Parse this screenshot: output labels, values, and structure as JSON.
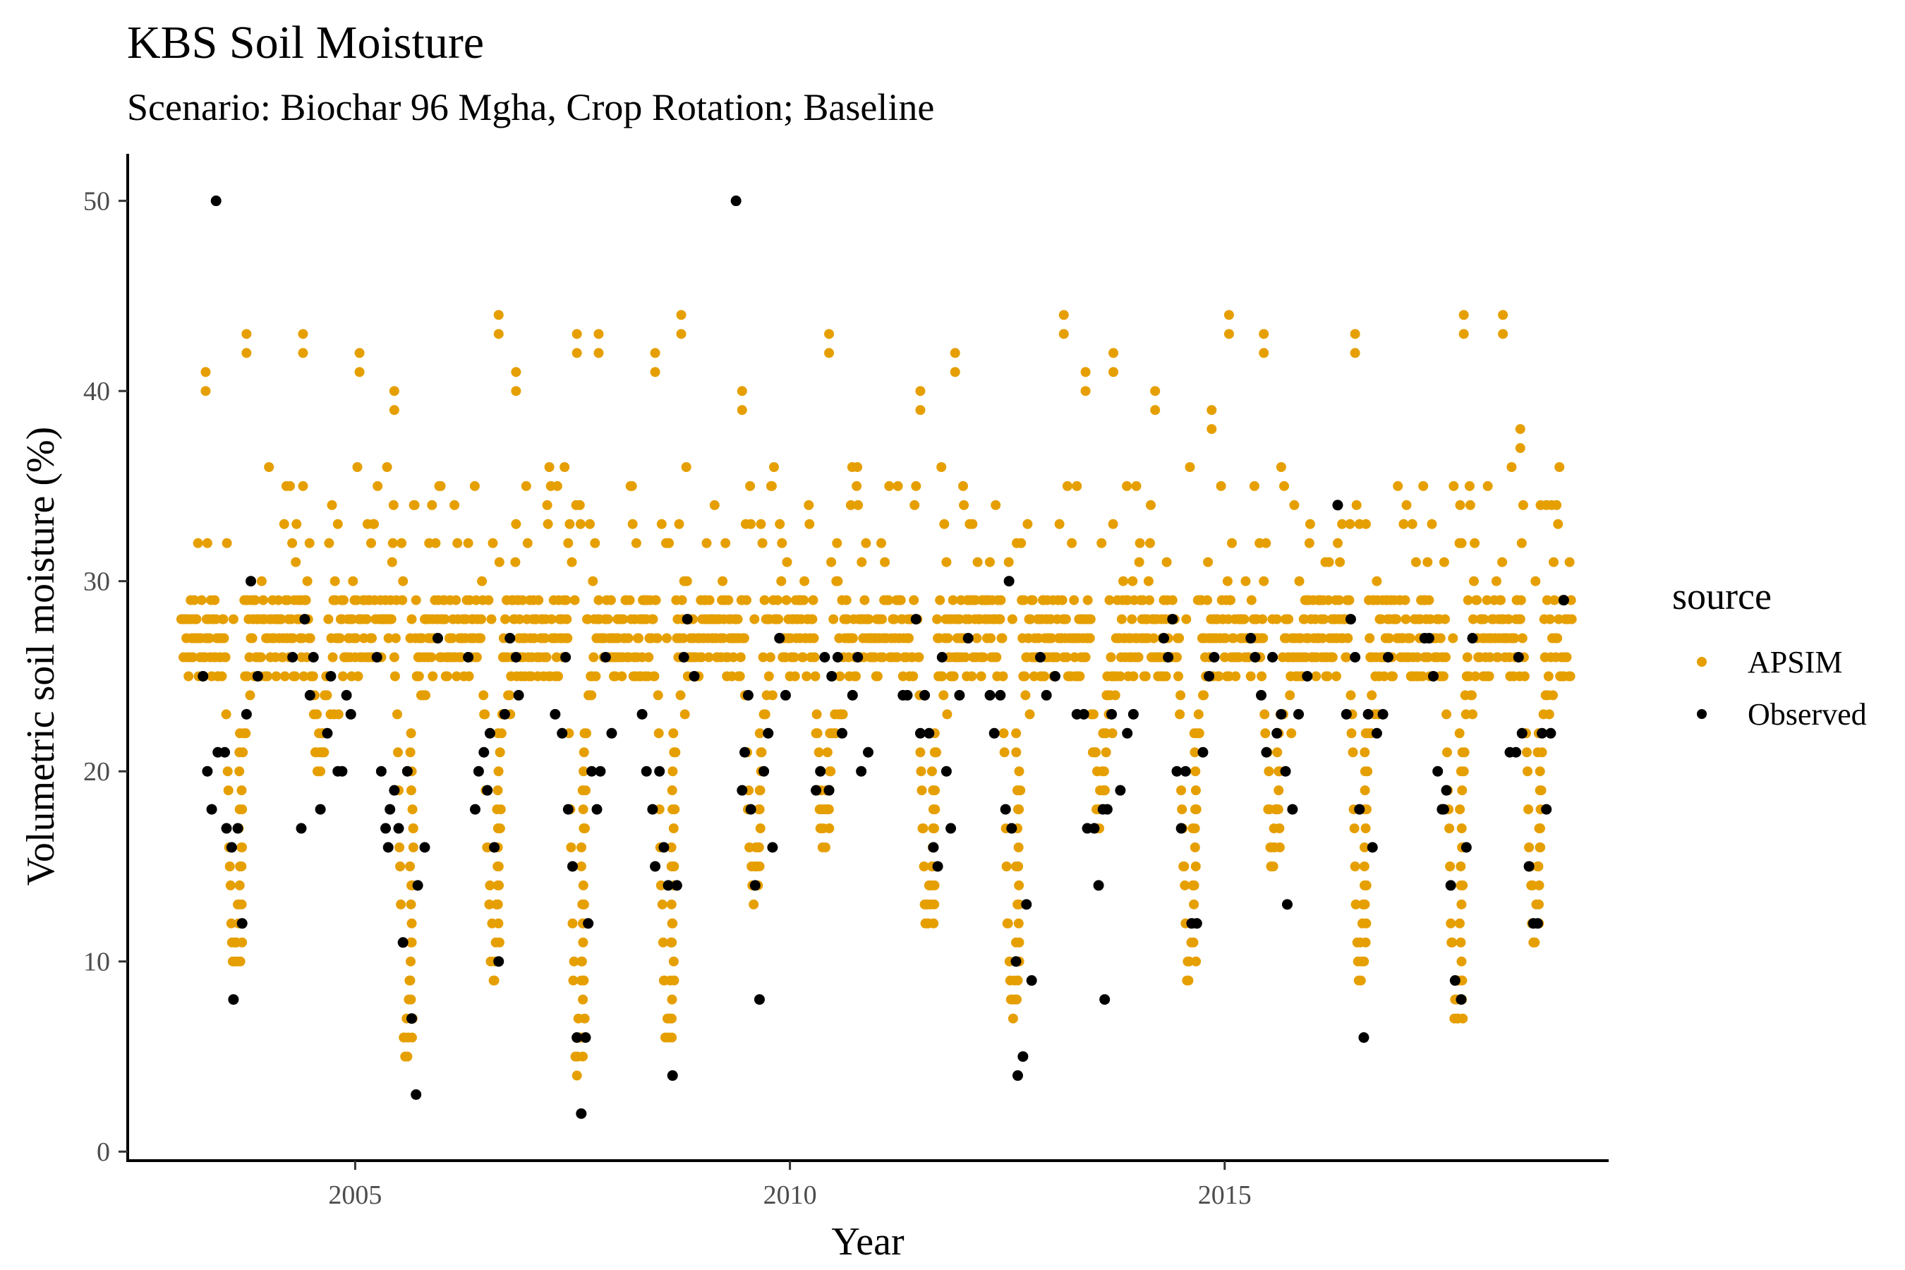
{
  "chart_data": {
    "type": "scatter",
    "title": "KBS Soil Moisture",
    "subtitle": "Scenario: Biochar 96 Mgha, Crop Rotation; Baseline",
    "xlabel": "Year",
    "ylabel": "Volumetric soil moisture (%)",
    "xlim": [
      2002.4,
      2019.4
    ],
    "ylim": [
      -0.4,
      52.4
    ],
    "x_ticks": [
      2005,
      2010,
      2015
    ],
    "y_ticks": [
      0,
      10,
      20,
      30,
      40,
      50
    ],
    "grid": false,
    "legend": {
      "title": "source",
      "position": "right",
      "entries": [
        "APSIM",
        "Observed"
      ]
    },
    "colors": {
      "APSIM": "#E69F00",
      "Observed": "#000000"
    },
    "series": [
      {
        "name": "APSIM",
        "description": "daily simulated values from 2003.0 to 2019.0, annual cycle: near 26-30 in winter/spring, drawdown in late summer, upward spikes after rain events",
        "seasonal_minima": [
          {
            "x": 2003.68,
            "y": 10
          },
          {
            "x": 2004.65,
            "y": 21
          },
          {
            "x": 2005.65,
            "y": 6
          },
          {
            "x": 2006.65,
            "y": 10
          },
          {
            "x": 2007.62,
            "y": 5
          },
          {
            "x": 2008.65,
            "y": 6
          },
          {
            "x": 2009.65,
            "y": 14
          },
          {
            "x": 2010.45,
            "y": 17
          },
          {
            "x": 2011.65,
            "y": 12
          },
          {
            "x": 2012.62,
            "y": 8
          },
          {
            "x": 2013.62,
            "y": 18
          },
          {
            "x": 2014.65,
            "y": 10
          },
          {
            "x": 2015.62,
            "y": 16
          },
          {
            "x": 2016.62,
            "y": 10
          },
          {
            "x": 2017.72,
            "y": 7
          },
          {
            "x": 2018.62,
            "y": 12
          }
        ],
        "spikes": [
          {
            "x": 2003.28,
            "y": 41
          },
          {
            "x": 2003.75,
            "y": 43
          },
          {
            "x": 2004.4,
            "y": 43
          },
          {
            "x": 2005.05,
            "y": 42
          },
          {
            "x": 2005.45,
            "y": 40
          },
          {
            "x": 2006.65,
            "y": 44
          },
          {
            "x": 2006.85,
            "y": 41
          },
          {
            "x": 2007.55,
            "y": 43
          },
          {
            "x": 2007.8,
            "y": 43
          },
          {
            "x": 2008.45,
            "y": 42
          },
          {
            "x": 2008.75,
            "y": 44
          },
          {
            "x": 2009.45,
            "y": 40
          },
          {
            "x": 2010.45,
            "y": 43
          },
          {
            "x": 2011.5,
            "y": 40
          },
          {
            "x": 2011.9,
            "y": 42
          },
          {
            "x": 2013.15,
            "y": 44
          },
          {
            "x": 2013.4,
            "y": 41
          },
          {
            "x": 2013.72,
            "y": 42
          },
          {
            "x": 2014.2,
            "y": 40
          },
          {
            "x": 2014.85,
            "y": 39
          },
          {
            "x": 2015.05,
            "y": 44
          },
          {
            "x": 2015.45,
            "y": 43
          },
          {
            "x": 2016.5,
            "y": 43
          },
          {
            "x": 2017.75,
            "y": 44
          },
          {
            "x": 2018.2,
            "y": 44
          },
          {
            "x": 2018.4,
            "y": 38
          }
        ]
      },
      {
        "name": "Observed",
        "points": [
          [
            2003.25,
            25
          ],
          [
            2003.3,
            20
          ],
          [
            2003.35,
            18
          ],
          [
            2003.4,
            50
          ],
          [
            2003.42,
            21
          ],
          [
            2003.5,
            21
          ],
          [
            2003.52,
            17
          ],
          [
            2003.58,
            16
          ],
          [
            2003.6,
            8
          ],
          [
            2003.65,
            17
          ],
          [
            2003.7,
            12
          ],
          [
            2003.75,
            23
          ],
          [
            2003.8,
            30
          ],
          [
            2003.88,
            25
          ],
          [
            2004.28,
            26
          ],
          [
            2004.38,
            17
          ],
          [
            2004.42,
            28
          ],
          [
            2004.48,
            24
          ],
          [
            2004.52,
            26
          ],
          [
            2004.6,
            18
          ],
          [
            2004.68,
            22
          ],
          [
            2004.72,
            25
          ],
          [
            2004.8,
            20
          ],
          [
            2004.85,
            20
          ],
          [
            2004.9,
            24
          ],
          [
            2004.95,
            23
          ],
          [
            2005.25,
            26
          ],
          [
            2005.3,
            20
          ],
          [
            2005.35,
            17
          ],
          [
            2005.38,
            16
          ],
          [
            2005.4,
            18
          ],
          [
            2005.45,
            19
          ],
          [
            2005.5,
            17
          ],
          [
            2005.55,
            11
          ],
          [
            2005.6,
            20
          ],
          [
            2005.65,
            7
          ],
          [
            2005.7,
            3
          ],
          [
            2005.72,
            14
          ],
          [
            2005.8,
            16
          ],
          [
            2005.95,
            27
          ],
          [
            2006.3,
            26
          ],
          [
            2006.38,
            18
          ],
          [
            2006.42,
            20
          ],
          [
            2006.48,
            21
          ],
          [
            2006.52,
            19
          ],
          [
            2006.55,
            22
          ],
          [
            2006.6,
            16
          ],
          [
            2006.65,
            10
          ],
          [
            2006.72,
            23
          ],
          [
            2006.78,
            27
          ],
          [
            2006.85,
            26
          ],
          [
            2006.88,
            24
          ],
          [
            2007.3,
            23
          ],
          [
            2007.38,
            22
          ],
          [
            2007.42,
            26
          ],
          [
            2007.45,
            18
          ],
          [
            2007.5,
            15
          ],
          [
            2007.55,
            6
          ],
          [
            2007.6,
            2
          ],
          [
            2007.65,
            6
          ],
          [
            2007.68,
            12
          ],
          [
            2007.72,
            20
          ],
          [
            2007.78,
            18
          ],
          [
            2007.82,
            20
          ],
          [
            2007.88,
            26
          ],
          [
            2007.95,
            22
          ],
          [
            2008.3,
            23
          ],
          [
            2008.35,
            20
          ],
          [
            2008.42,
            18
          ],
          [
            2008.45,
            15
          ],
          [
            2008.5,
            20
          ],
          [
            2008.55,
            16
          ],
          [
            2008.6,
            14
          ],
          [
            2008.65,
            4
          ],
          [
            2008.7,
            14
          ],
          [
            2008.78,
            26
          ],
          [
            2008.82,
            28
          ],
          [
            2008.9,
            25
          ],
          [
            2009.38,
            50
          ],
          [
            2009.45,
            19
          ],
          [
            2009.48,
            21
          ],
          [
            2009.52,
            24
          ],
          [
            2009.55,
            18
          ],
          [
            2009.6,
            14
          ],
          [
            2009.65,
            8
          ],
          [
            2009.7,
            20
          ],
          [
            2009.75,
            22
          ],
          [
            2009.8,
            16
          ],
          [
            2009.88,
            27
          ],
          [
            2009.95,
            24
          ],
          [
            2010.3,
            19
          ],
          [
            2010.35,
            20
          ],
          [
            2010.4,
            26
          ],
          [
            2010.45,
            19
          ],
          [
            2010.48,
            25
          ],
          [
            2010.55,
            26
          ],
          [
            2010.6,
            22
          ],
          [
            2010.72,
            24
          ],
          [
            2010.78,
            26
          ],
          [
            2010.82,
            20
          ],
          [
            2010.9,
            21
          ],
          [
            2011.3,
            24
          ],
          [
            2011.35,
            24
          ],
          [
            2011.45,
            28
          ],
          [
            2011.5,
            22
          ],
          [
            2011.55,
            24
          ],
          [
            2011.6,
            22
          ],
          [
            2011.65,
            16
          ],
          [
            2011.7,
            15
          ],
          [
            2011.75,
            26
          ],
          [
            2011.8,
            20
          ],
          [
            2011.85,
            17
          ],
          [
            2011.95,
            24
          ],
          [
            2012.05,
            27
          ],
          [
            2012.3,
            24
          ],
          [
            2012.35,
            22
          ],
          [
            2012.42,
            24
          ],
          [
            2012.48,
            18
          ],
          [
            2012.52,
            30
          ],
          [
            2012.55,
            17
          ],
          [
            2012.6,
            10
          ],
          [
            2012.62,
            4
          ],
          [
            2012.68,
            5
          ],
          [
            2012.72,
            13
          ],
          [
            2012.78,
            9
          ],
          [
            2012.88,
            26
          ],
          [
            2012.95,
            24
          ],
          [
            2013.05,
            25
          ],
          [
            2013.3,
            23
          ],
          [
            2013.38,
            23
          ],
          [
            2013.42,
            17
          ],
          [
            2013.5,
            17
          ],
          [
            2013.55,
            14
          ],
          [
            2013.6,
            18
          ],
          [
            2013.62,
            8
          ],
          [
            2013.65,
            18
          ],
          [
            2013.7,
            23
          ],
          [
            2013.8,
            19
          ],
          [
            2013.88,
            22
          ],
          [
            2013.95,
            23
          ],
          [
            2014.3,
            27
          ],
          [
            2014.35,
            26
          ],
          [
            2014.4,
            28
          ],
          [
            2014.45,
            20
          ],
          [
            2014.5,
            17
          ],
          [
            2014.55,
            20
          ],
          [
            2014.62,
            12
          ],
          [
            2014.68,
            12
          ],
          [
            2014.75,
            21
          ],
          [
            2014.82,
            25
          ],
          [
            2014.88,
            26
          ],
          [
            2015.3,
            27
          ],
          [
            2015.35,
            26
          ],
          [
            2015.42,
            24
          ],
          [
            2015.48,
            21
          ],
          [
            2015.55,
            26
          ],
          [
            2015.6,
            22
          ],
          [
            2015.65,
            23
          ],
          [
            2015.7,
            20
          ],
          [
            2015.72,
            13
          ],
          [
            2015.78,
            18
          ],
          [
            2015.85,
            23
          ],
          [
            2015.95,
            25
          ],
          [
            2016.3,
            34
          ],
          [
            2016.4,
            23
          ],
          [
            2016.45,
            28
          ],
          [
            2016.5,
            26
          ],
          [
            2016.55,
            18
          ],
          [
            2016.6,
            6
          ],
          [
            2016.65,
            23
          ],
          [
            2016.7,
            16
          ],
          [
            2016.75,
            22
          ],
          [
            2016.82,
            23
          ],
          [
            2016.88,
            26
          ],
          [
            2017.3,
            27
          ],
          [
            2017.35,
            27
          ],
          [
            2017.4,
            25
          ],
          [
            2017.45,
            20
          ],
          [
            2017.5,
            18
          ],
          [
            2017.52,
            18
          ],
          [
            2017.55,
            19
          ],
          [
            2017.6,
            14
          ],
          [
            2017.65,
            9
          ],
          [
            2017.72,
            8
          ],
          [
            2017.78,
            16
          ],
          [
            2017.85,
            27
          ],
          [
            2018.28,
            21
          ],
          [
            2018.35,
            21
          ],
          [
            2018.38,
            26
          ],
          [
            2018.42,
            22
          ],
          [
            2018.5,
            15
          ],
          [
            2018.55,
            12
          ],
          [
            2018.6,
            12
          ],
          [
            2018.65,
            22
          ],
          [
            2018.7,
            18
          ],
          [
            2018.75,
            22
          ],
          [
            2018.9,
            29
          ]
        ]
      }
    ]
  }
}
